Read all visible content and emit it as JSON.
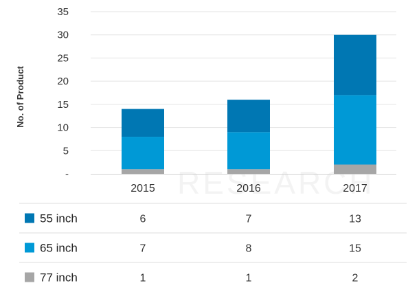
{
  "chart_data": {
    "type": "bar",
    "stacked": true,
    "categories": [
      "2015",
      "2016",
      "2017"
    ],
    "series": [
      {
        "name": "77 inch",
        "values": [
          1,
          1,
          2
        ],
        "color": "#a6a6a6"
      },
      {
        "name": "65 inch",
        "values": [
          7,
          8,
          15
        ],
        "color": "#0099d6"
      },
      {
        "name": "55 inch",
        "values": [
          6,
          7,
          13
        ],
        "color": "#0077b3"
      }
    ],
    "ylabel": "No. of Product",
    "ylim": [
      0,
      35
    ],
    "yticks": [
      0,
      5,
      10,
      15,
      20,
      25,
      30,
      35
    ],
    "ytick_labels": [
      "-",
      "5",
      "10",
      "15",
      "20",
      "25",
      "30",
      "35"
    ],
    "grid": true,
    "table": {
      "rows": [
        {
          "label": "55 inch",
          "series": "55 inch",
          "values": [
            "6",
            "7",
            "13"
          ]
        },
        {
          "label": "65 inch",
          "series": "65 inch",
          "values": [
            "7",
            "8",
            "15"
          ]
        },
        {
          "label": "77 inch",
          "series": "77 inch",
          "values": [
            "1",
            "1",
            "2"
          ]
        }
      ]
    },
    "watermark": "RESEARCH"
  }
}
